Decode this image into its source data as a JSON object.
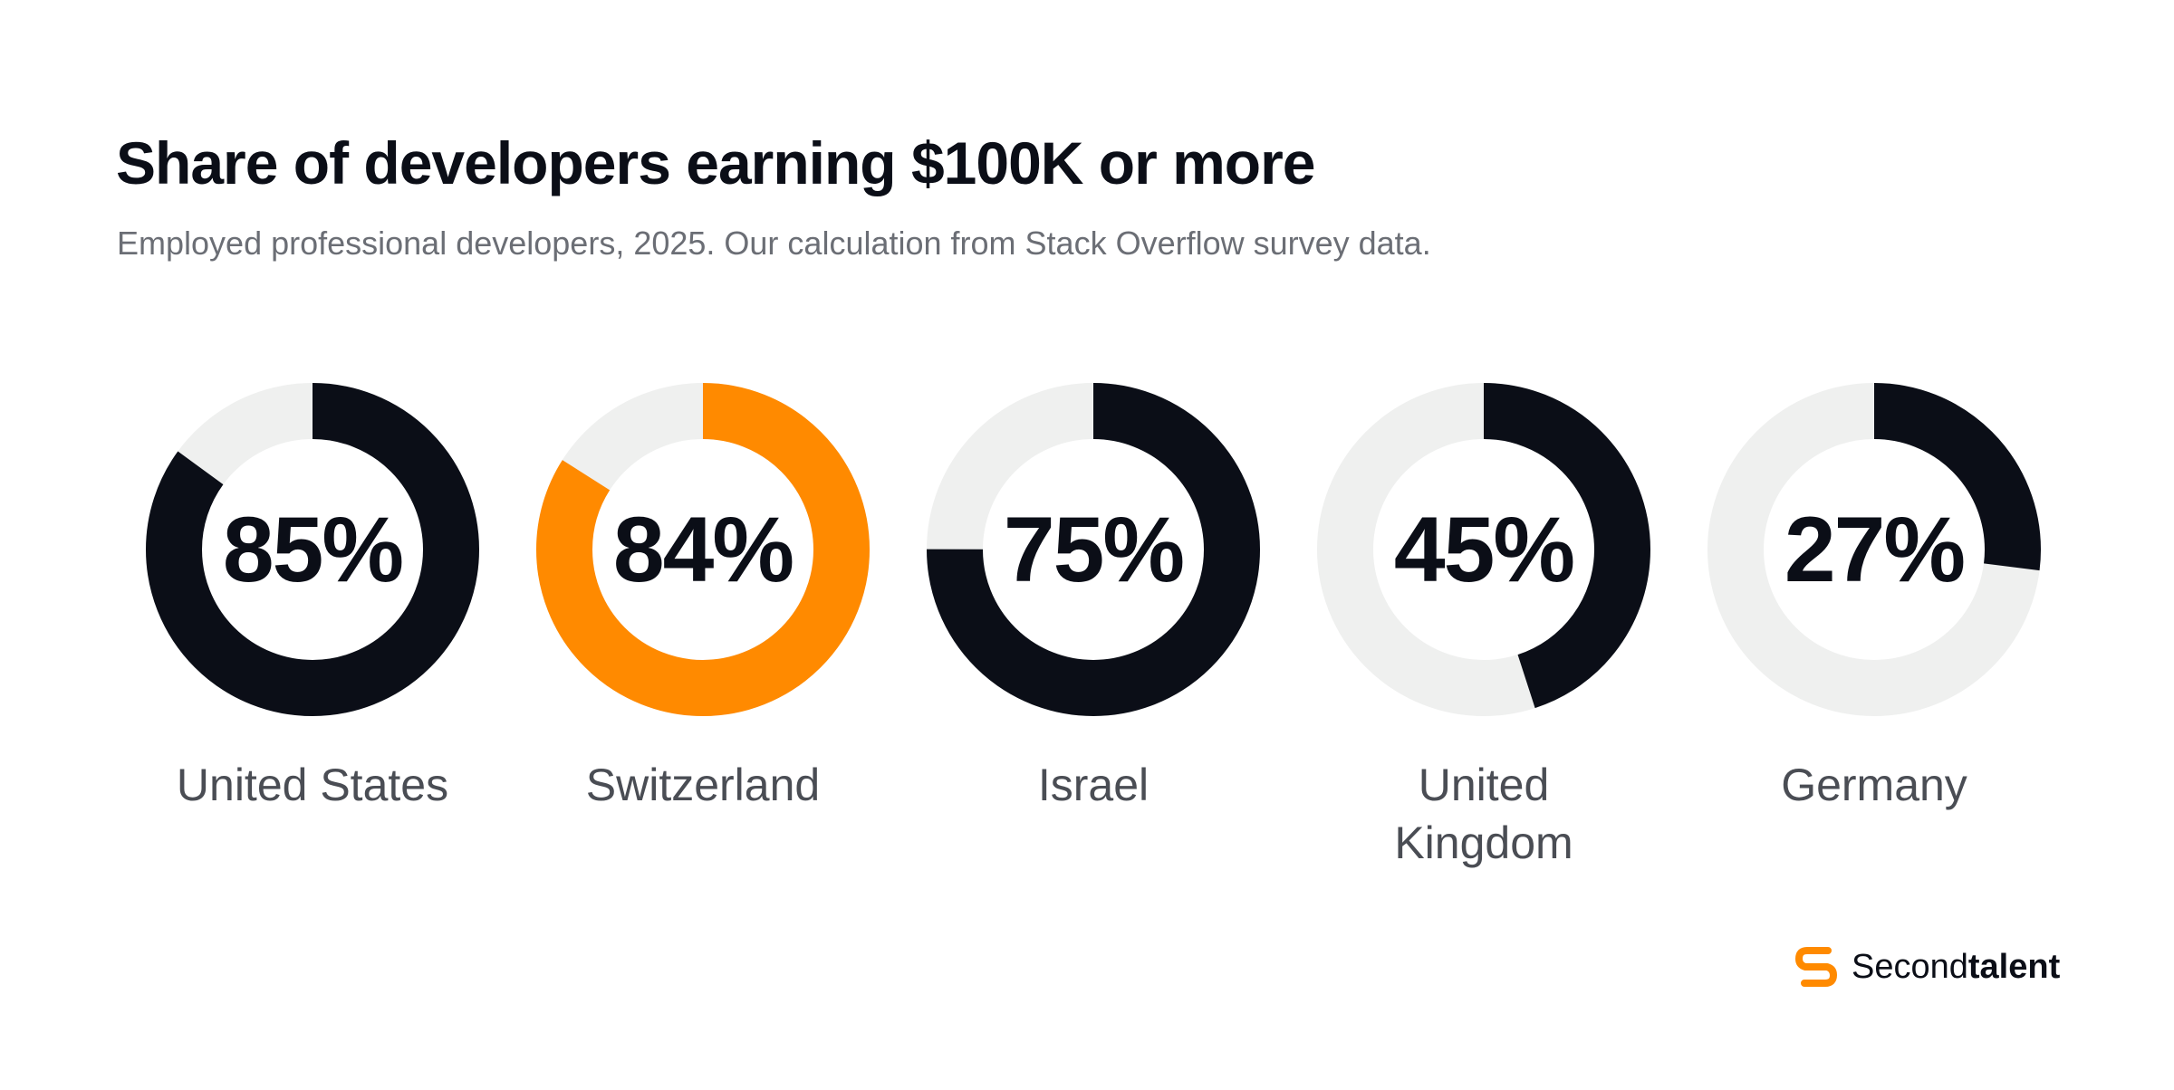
{
  "header": {
    "title": "Share of developers earning $100K or more",
    "subtitle": "Employed professional developers, 2025. Our calculation from Stack Overflow survey data."
  },
  "chart_data": {
    "type": "donut",
    "title": "Share of developers earning $100K or more",
    "subtitle": "Employed professional developers, 2025. Our calculation from Stack Overflow survey data.",
    "unit": "%",
    "categories": [
      "United States",
      "Switzerland",
      "Israel",
      "United Kingdom",
      "Germany"
    ],
    "category_lines": [
      [
        "United States"
      ],
      [
        "Switzerland"
      ],
      [
        "Israel"
      ],
      [
        "United",
        "Kingdom"
      ],
      [
        "Germany"
      ]
    ],
    "values": [
      85,
      84,
      75,
      45,
      27
    ],
    "labels": [
      "85%",
      "84%",
      "75%",
      "45%",
      "27%"
    ],
    "colors": [
      "#0b0e17",
      "#ff8a00",
      "#0b0e17",
      "#0b0e17",
      "#0b0e17"
    ],
    "track_color": "#eff0ef"
  },
  "brand": {
    "name_light": "Second",
    "name_bold": "talent",
    "icon": "secondtalent-logo-icon",
    "color": "#ff8a00"
  }
}
